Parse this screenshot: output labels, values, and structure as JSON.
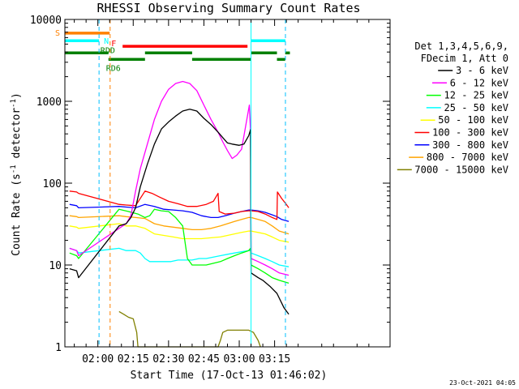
{
  "chart_data": {
    "type": "line",
    "title": "RHESSI Observing Summary Count Rates",
    "xlabel": "Start Time (17-Oct-13 01:46:02)",
    "ylabel_main": "Count Rate (s",
    "ylabel_sup1": "-1",
    "ylabel_mid": " detector",
    "ylabel_sup2": "-1",
    "ylabel_end": ")",
    "x_range_min": [
      -14,
      124
    ],
    "y_range_log": [
      1,
      10000
    ],
    "x_ticks": [
      {
        "label": "02:00",
        "min": 0
      },
      {
        "label": "02:15",
        "min": 15
      },
      {
        "label": "02:30",
        "min": 30
      },
      {
        "label": "02:45",
        "min": 45
      },
      {
        "label": "03:00",
        "min": 60
      },
      {
        "label": "03:15",
        "min": 75
      }
    ],
    "y_ticks": [
      {
        "label": "1",
        "value": 1
      },
      {
        "label": "10",
        "value": 10
      },
      {
        "label": "100",
        "value": 100
      },
      {
        "label": "1000",
        "value": 1000
      },
      {
        "label": "10000",
        "value": 10000
      }
    ],
    "legend_header": [
      "Det 1,3,4,5,6,9,",
      "FDecim 1, Att 0"
    ],
    "series": [
      {
        "name": "3 - 6 keV",
        "color": "#000000",
        "points": [
          [
            -12,
            9
          ],
          [
            -9,
            8.5
          ],
          [
            -8.2,
            7
          ],
          [
            9,
            30
          ],
          [
            12,
            32
          ],
          [
            14,
            38
          ],
          [
            16,
            50
          ],
          [
            18,
            90
          ],
          [
            21,
            170
          ],
          [
            24,
            300
          ],
          [
            27,
            460
          ],
          [
            30,
            560
          ],
          [
            33,
            660
          ],
          [
            36,
            760
          ],
          [
            39,
            800
          ],
          [
            42,
            760
          ],
          [
            45,
            620
          ],
          [
            48,
            520
          ],
          [
            51,
            420
          ],
          [
            53,
            360
          ],
          [
            55,
            310
          ],
          [
            57,
            300
          ],
          [
            60,
            290
          ],
          [
            62,
            300
          ],
          [
            64,
            380
          ],
          [
            64.8,
            450
          ],
          [
            65,
            8
          ],
          [
            68,
            7
          ],
          [
            70,
            6.5
          ],
          [
            73,
            5.5
          ],
          [
            76,
            4.5
          ],
          [
            79,
            3
          ],
          [
            81,
            2.5
          ]
        ]
      },
      {
        "name": "6 - 12 keV",
        "color": "#ff00ff",
        "points": [
          [
            -12,
            16
          ],
          [
            -9,
            15
          ],
          [
            -8.2,
            13
          ],
          [
            9,
            28
          ],
          [
            12,
            32
          ],
          [
            14,
            40
          ],
          [
            16,
            80
          ],
          [
            18,
            150
          ],
          [
            21,
            300
          ],
          [
            24,
            600
          ],
          [
            27,
            1000
          ],
          [
            30,
            1400
          ],
          [
            33,
            1650
          ],
          [
            36,
            1750
          ],
          [
            39,
            1650
          ],
          [
            42,
            1350
          ],
          [
            45,
            900
          ],
          [
            48,
            600
          ],
          [
            51,
            420
          ],
          [
            53,
            320
          ],
          [
            55,
            250
          ],
          [
            57,
            200
          ],
          [
            59,
            220
          ],
          [
            61,
            260
          ],
          [
            63,
            550
          ],
          [
            64.3,
            900
          ],
          [
            64.8,
            420
          ],
          [
            65,
            12
          ],
          [
            68,
            11
          ],
          [
            71,
            10
          ],
          [
            74,
            9
          ],
          [
            77,
            8
          ],
          [
            81,
            7.5
          ]
        ]
      },
      {
        "name": "12 - 25 keV",
        "color": "#00ff00",
        "points": [
          [
            -12,
            14
          ],
          [
            -9,
            13
          ],
          [
            -8.2,
            12
          ],
          [
            9,
            48
          ],
          [
            13,
            45
          ],
          [
            17,
            42
          ],
          [
            20,
            38
          ],
          [
            22,
            40
          ],
          [
            24,
            48
          ],
          [
            27,
            46
          ],
          [
            30,
            45
          ],
          [
            33,
            38
          ],
          [
            36,
            30
          ],
          [
            38,
            12
          ],
          [
            40,
            10
          ],
          [
            43,
            10
          ],
          [
            46,
            10
          ],
          [
            49,
            10.5
          ],
          [
            52,
            11
          ],
          [
            55,
            12
          ],
          [
            58,
            13
          ],
          [
            61,
            14
          ],
          [
            64,
            15
          ],
          [
            64.8,
            16
          ],
          [
            65,
            10
          ],
          [
            68,
            9
          ],
          [
            71,
            8
          ],
          [
            74,
            7
          ],
          [
            77,
            6.5
          ],
          [
            81,
            6
          ]
        ]
      },
      {
        "name": "25 - 50 keV",
        "color": "#00ffff",
        "points": [
          [
            -12,
            16
          ],
          [
            -9,
            15
          ],
          [
            -8.2,
            14
          ],
          [
            9,
            16
          ],
          [
            12,
            15
          ],
          [
            16,
            15
          ],
          [
            18,
            14
          ],
          [
            20,
            12
          ],
          [
            22,
            11
          ],
          [
            25,
            11
          ],
          [
            28,
            11
          ],
          [
            31,
            11
          ],
          [
            34,
            11.5
          ],
          [
            37,
            11.5
          ],
          [
            40,
            11.5
          ],
          [
            43,
            12
          ],
          [
            46,
            12
          ],
          [
            49,
            12.5
          ],
          [
            52,
            13
          ],
          [
            55,
            13.5
          ],
          [
            58,
            14
          ],
          [
            61,
            14.5
          ],
          [
            64,
            15
          ],
          [
            64.8,
            15
          ],
          [
            65,
            14
          ],
          [
            68,
            13
          ],
          [
            71,
            12
          ],
          [
            74,
            11
          ],
          [
            77,
            10
          ],
          [
            81,
            9.5
          ]
        ]
      },
      {
        "name": "50 - 100 keV",
        "color": "#ffff00",
        "points": [
          [
            -12,
            30
          ],
          [
            -9,
            29
          ],
          [
            -8.2,
            28
          ],
          [
            9,
            32
          ],
          [
            12,
            30
          ],
          [
            16,
            30
          ],
          [
            20,
            28
          ],
          [
            24,
            24
          ],
          [
            28,
            23
          ],
          [
            32,
            22
          ],
          [
            36,
            21
          ],
          [
            40,
            21
          ],
          [
            44,
            21
          ],
          [
            48,
            21.5
          ],
          [
            52,
            22
          ],
          [
            55,
            23
          ],
          [
            58,
            24
          ],
          [
            61,
            25
          ],
          [
            64,
            26
          ],
          [
            64.8,
            26
          ],
          [
            65,
            26
          ],
          [
            68,
            25
          ],
          [
            71,
            24
          ],
          [
            74,
            22
          ],
          [
            77,
            20
          ],
          [
            81,
            19
          ]
        ]
      },
      {
        "name": "100 - 300 keV",
        "color": "#ff0000",
        "points": [
          [
            -12,
            80
          ],
          [
            -9,
            78
          ],
          [
            -8.2,
            75
          ],
          [
            9,
            55
          ],
          [
            12,
            54
          ],
          [
            16,
            53
          ],
          [
            20,
            80
          ],
          [
            23,
            75
          ],
          [
            26,
            68
          ],
          [
            30,
            60
          ],
          [
            34,
            56
          ],
          [
            38,
            52
          ],
          [
            42,
            52
          ],
          [
            46,
            55
          ],
          [
            49,
            60
          ],
          [
            51,
            75
          ],
          [
            51.5,
            45
          ],
          [
            54,
            42
          ],
          [
            58,
            43
          ],
          [
            61,
            45
          ],
          [
            64,
            46
          ],
          [
            64.8,
            46
          ],
          [
            65,
            46
          ],
          [
            68,
            45
          ],
          [
            71,
            42
          ],
          [
            74,
            38
          ],
          [
            76,
            36
          ],
          [
            76.2,
            78
          ],
          [
            78,
            65
          ],
          [
            80,
            55
          ],
          [
            81,
            50
          ]
        ]
      },
      {
        "name": "300 - 800 keV",
        "color": "#0000ff",
        "points": [
          [
            -12,
            55
          ],
          [
            -9,
            53
          ],
          [
            -8.2,
            50
          ],
          [
            9,
            52
          ],
          [
            12,
            51
          ],
          [
            16,
            50
          ],
          [
            20,
            55
          ],
          [
            24,
            52
          ],
          [
            28,
            48
          ],
          [
            32,
            47
          ],
          [
            36,
            46
          ],
          [
            40,
            44
          ],
          [
            44,
            40
          ],
          [
            48,
            38
          ],
          [
            51,
            38
          ],
          [
            54,
            40
          ],
          [
            58,
            43
          ],
          [
            61,
            45
          ],
          [
            64,
            47
          ],
          [
            64.8,
            47
          ],
          [
            65,
            47
          ],
          [
            68,
            46
          ],
          [
            71,
            44
          ],
          [
            74,
            41
          ],
          [
            76,
            39
          ],
          [
            78,
            36
          ],
          [
            81,
            34
          ]
        ]
      },
      {
        "name": "800 - 7000 keV",
        "color": "#ffa500",
        "points": [
          [
            -12,
            40
          ],
          [
            -9,
            39
          ],
          [
            -8.2,
            38
          ],
          [
            9,
            40
          ],
          [
            12,
            39
          ],
          [
            16,
            38
          ],
          [
            20,
            37
          ],
          [
            24,
            32
          ],
          [
            28,
            30
          ],
          [
            32,
            29
          ],
          [
            36,
            28
          ],
          [
            40,
            27
          ],
          [
            44,
            27
          ],
          [
            48,
            28
          ],
          [
            52,
            30
          ],
          [
            55,
            32
          ],
          [
            58,
            34
          ],
          [
            61,
            36
          ],
          [
            64,
            38
          ],
          [
            64.8,
            38
          ],
          [
            65,
            38
          ],
          [
            68,
            36
          ],
          [
            71,
            34
          ],
          [
            74,
            30
          ],
          [
            77,
            26
          ],
          [
            81,
            24
          ]
        ]
      },
      {
        "name": "7000 - 15000 keV",
        "color": "#808000",
        "points": [
          [
            9,
            2.7
          ],
          [
            11,
            2.5
          ],
          [
            13,
            2.3
          ],
          [
            15,
            2.2
          ],
          [
            16.5,
            1.5
          ],
          [
            17,
            1
          ],
          [
            27,
            1
          ],
          [
            51,
            1
          ],
          [
            52,
            1.2
          ],
          [
            53,
            1.5
          ],
          [
            55,
            1.6
          ],
          [
            58,
            1.6
          ],
          [
            61,
            1.6
          ],
          [
            64,
            1.6
          ],
          [
            66,
            1.5
          ],
          [
            68,
            1.2
          ],
          [
            69,
            1
          ]
        ]
      }
    ],
    "state_bars": [
      {
        "label": "S",
        "color": "#ff8000",
        "segments": [
          [
            -14,
            5
          ]
        ],
        "value": 6800
      },
      {
        "label": "N",
        "color": "#00ffff",
        "segments": [
          [
            -14,
            0.5
          ],
          [
            65,
            79.6
          ]
        ],
        "value": 5500
      },
      {
        "label": "F",
        "color": "#ff0000",
        "segments": [
          [
            10.5,
            63.5
          ]
        ],
        "value": 4700
      },
      {
        "label": "RDD",
        "color": "#008000",
        "segments": [
          [
            -14,
            4.5
          ],
          [
            20,
            40
          ],
          [
            65,
            76
          ],
          [
            79.5,
            81.5
          ]
        ],
        "value": 3900
      },
      {
        "label": "RD6",
        "color": "#008000",
        "segments": [
          [
            4.5,
            20
          ],
          [
            40,
            65
          ],
          [
            76,
            79.5
          ]
        ],
        "value": 3250
      }
    ],
    "vlines": [
      {
        "min": 0.5,
        "color": "#00bfff",
        "dashed": true
      },
      {
        "min": 5.2,
        "color": "#ff8000",
        "dashed": true
      },
      {
        "min": 65,
        "color": "#00ffff",
        "dashed": false
      },
      {
        "min": 79.6,
        "color": "#00bfff",
        "dashed": true
      }
    ],
    "footer_date": "23-Oct-2021 04:05"
  }
}
